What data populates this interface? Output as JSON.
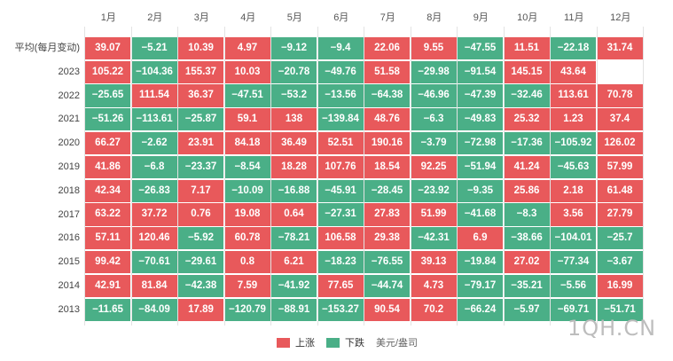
{
  "chart_data": {
    "type": "heatmap",
    "title": "",
    "unit": "美元/盎司",
    "columns": [
      "1月",
      "2月",
      "3月",
      "4月",
      "5月",
      "6月",
      "7月",
      "8月",
      "9月",
      "10月",
      "11月",
      "12月"
    ],
    "rows": [
      {
        "label": "平均(每月变动)",
        "values": [
          39.07,
          -5.21,
          10.39,
          4.97,
          -9.12,
          -9.4,
          22.06,
          9.55,
          -47.55,
          11.51,
          -22.18,
          31.74
        ]
      },
      {
        "label": "2023",
        "values": [
          105.22,
          -104.36,
          155.37,
          10.03,
          -20.78,
          -49.76,
          51.58,
          -29.98,
          -91.54,
          145.15,
          43.64,
          null
        ]
      },
      {
        "label": "2022",
        "values": [
          -25.65,
          111.54,
          36.37,
          -47.51,
          -53.2,
          -13.56,
          -64.38,
          -46.96,
          -47.39,
          -32.46,
          113.61,
          70.78
        ]
      },
      {
        "label": "2021",
        "values": [
          -51.26,
          -113.61,
          -25.87,
          59.1,
          138,
          -139.84,
          48.76,
          -6.3,
          -49.83,
          25.32,
          1.23,
          37.4
        ]
      },
      {
        "label": "2020",
        "values": [
          66.27,
          -2.62,
          23.91,
          84.18,
          36.49,
          52.51,
          190.16,
          -3.79,
          -72.98,
          -17.36,
          -105.92,
          126.02
        ]
      },
      {
        "label": "2019",
        "values": [
          41.86,
          -6.8,
          -23.37,
          -8.54,
          18.28,
          107.76,
          18.54,
          92.25,
          -51.94,
          41.24,
          -45.63,
          57.99
        ]
      },
      {
        "label": "2018",
        "values": [
          42.34,
          -26.83,
          7.17,
          -10.09,
          -16.88,
          -45.91,
          -28.45,
          -23.92,
          -9.35,
          25.86,
          2.18,
          61.48
        ]
      },
      {
        "label": "2017",
        "values": [
          63.22,
          37.72,
          0.76,
          19.08,
          0.64,
          -27.31,
          27.83,
          51.99,
          -41.68,
          -8.3,
          3.56,
          27.79
        ]
      },
      {
        "label": "2016",
        "values": [
          57.11,
          120.46,
          -5.92,
          60.78,
          -78.21,
          106.58,
          29.38,
          -42.31,
          6.9,
          -38.66,
          -104.01,
          -25.7
        ]
      },
      {
        "label": "2015",
        "values": [
          99.42,
          -70.61,
          -29.61,
          0.8,
          6.21,
          -18.23,
          -76.55,
          39.13,
          -19.84,
          27.02,
          -77.34,
          -3.67
        ]
      },
      {
        "label": "2014",
        "values": [
          42.91,
          81.84,
          -42.38,
          7.59,
          -41.92,
          77.65,
          -44.74,
          4.73,
          -79.17,
          -35.21,
          -5.56,
          16.99
        ]
      },
      {
        "label": "2013",
        "values": [
          -11.65,
          -84.09,
          17.89,
          -120.79,
          -88.91,
          -153.27,
          90.54,
          70.2,
          -66.24,
          -5.97,
          -69.71,
          -51.71
        ]
      }
    ],
    "legend": [
      {
        "label": "上涨",
        "color": "#e8595b"
      },
      {
        "label": "下跌",
        "color": "#4aaf87"
      }
    ],
    "legend_position": "bottom"
  },
  "legend": {
    "up_label": "上涨",
    "down_label": "下跌",
    "unit_label": "美元/盎司"
  },
  "colors": {
    "up": "#e8595b",
    "down": "#4aaf87"
  },
  "watermark": "1QH.CN"
}
